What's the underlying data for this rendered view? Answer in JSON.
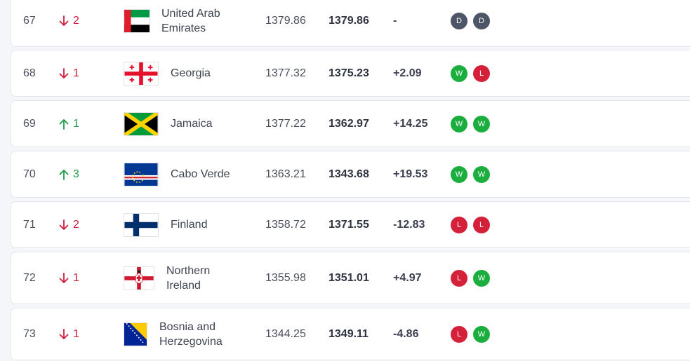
{
  "colors": {
    "win": "#1bae3f",
    "loss": "#d5203a",
    "draw": "#4e5566",
    "up": "#1d9b47",
    "down": "#d01c3a"
  },
  "rows": [
    {
      "rank": "67",
      "direction": "down",
      "change": "2",
      "flag_icon": "uae-flag-icon",
      "name": [
        "United Arab",
        "Emirates"
      ],
      "previous_points": "1379.86",
      "points": "1379.86",
      "difference": "-",
      "results": [
        "D",
        "D"
      ]
    },
    {
      "rank": "68",
      "direction": "down",
      "change": "1",
      "flag_icon": "georgia-flag-icon",
      "name": [
        "Georgia"
      ],
      "previous_points": "1377.32",
      "points": "1375.23",
      "difference": "+2.09",
      "results": [
        "W",
        "L"
      ]
    },
    {
      "rank": "69",
      "direction": "up",
      "change": "1",
      "flag_icon": "jamaica-flag-icon",
      "name": [
        "Jamaica"
      ],
      "previous_points": "1377.22",
      "points": "1362.97",
      "difference": "+14.25",
      "results": [
        "W",
        "W"
      ]
    },
    {
      "rank": "70",
      "direction": "up",
      "change": "3",
      "flag_icon": "cabo-verde-flag-icon",
      "name": [
        "Cabo Verde"
      ],
      "previous_points": "1363.21",
      "points": "1343.68",
      "difference": "+19.53",
      "results": [
        "W",
        "W"
      ]
    },
    {
      "rank": "71",
      "direction": "down",
      "change": "2",
      "flag_icon": "finland-flag-icon",
      "name": [
        "Finland"
      ],
      "previous_points": "1358.72",
      "points": "1371.55",
      "difference": "-12.83",
      "results": [
        "L",
        "L"
      ]
    },
    {
      "rank": "72",
      "direction": "down",
      "change": "1",
      "flag_icon": "northern-ireland-flag-icon",
      "name": [
        "Northern",
        "Ireland"
      ],
      "previous_points": "1355.98",
      "points": "1351.01",
      "difference": "+4.97",
      "results": [
        "L",
        "W"
      ]
    },
    {
      "rank": "73",
      "direction": "down",
      "change": "1",
      "flag_icon": "bosnia-flag-icon",
      "name": [
        "Bosnia and",
        "Herzegovina"
      ],
      "previous_points": "1344.25",
      "points": "1349.11",
      "difference": "-4.86",
      "results": [
        "L",
        "W"
      ]
    }
  ]
}
